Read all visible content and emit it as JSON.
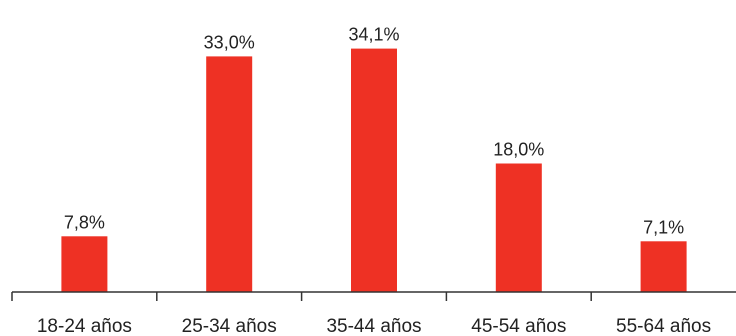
{
  "chart_data": {
    "type": "bar",
    "categories": [
      "18-24 años",
      "25-34 años",
      "35-44 años",
      "45-54 años",
      "55-64 años"
    ],
    "values": [
      7.8,
      33.0,
      34.1,
      18.0,
      7.1
    ],
    "data_labels": [
      "7,8%",
      "33,0%",
      "34,1%",
      "18,0%",
      "7,1%"
    ],
    "title": "",
    "xlabel": "",
    "ylabel": "",
    "ylim": [
      0,
      36
    ],
    "grid": false,
    "legend": "none",
    "bar_color": "#ee3124",
    "axis_color": "#333333"
  }
}
